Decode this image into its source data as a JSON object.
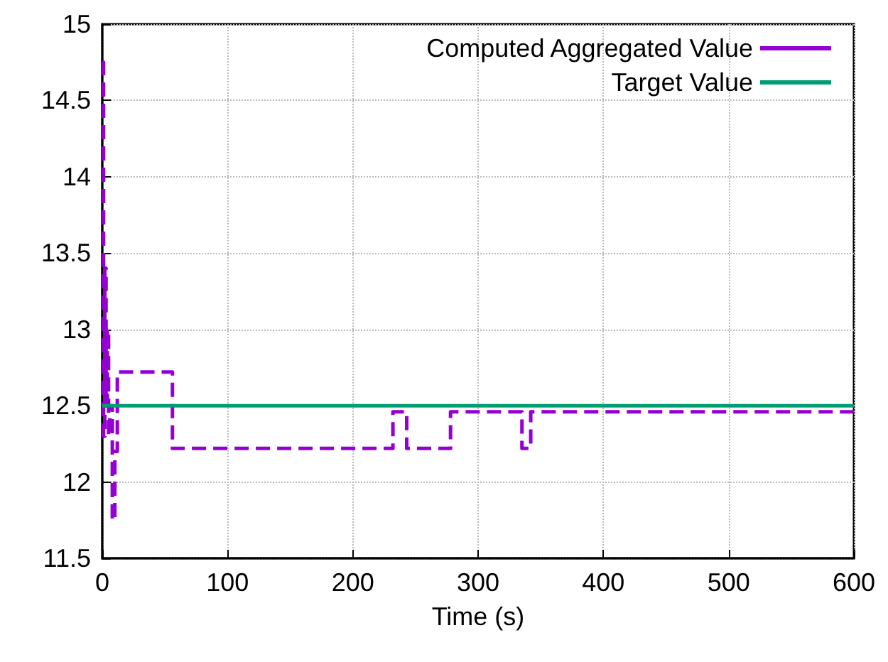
{
  "chart_data": {
    "type": "step",
    "xlabel": "Time (s)",
    "series": [
      {
        "name": "Computed Aggregated Value",
        "color": "#9400d3",
        "line_style": "dashed",
        "x": [
          0,
          1,
          2,
          3,
          4,
          5,
          6,
          8,
          10,
          12,
          56,
          232,
          243,
          278,
          335,
          342,
          600
        ],
        "values": [
          14.75,
          12.3,
          13.4,
          12.5,
          13.0,
          12.3,
          12.5,
          11.75,
          12.2,
          12.72,
          12.22,
          12.46,
          12.22,
          12.46,
          12.22,
          12.46,
          12.46
        ]
      },
      {
        "name": "Target Value",
        "color": "#009e73",
        "line_style": "solid",
        "x": [
          0,
          600
        ],
        "values": [
          12.5,
          12.5
        ]
      }
    ],
    "xlim": [
      0,
      600
    ],
    "xticks": [
      0,
      100,
      200,
      300,
      400,
      500,
      600
    ],
    "ylim": [
      11.5,
      15
    ],
    "yticks": [
      11.5,
      12,
      12.5,
      13,
      13.5,
      14,
      14.5,
      15
    ],
    "grid": true,
    "legend": "top right",
    "marker": "none"
  }
}
